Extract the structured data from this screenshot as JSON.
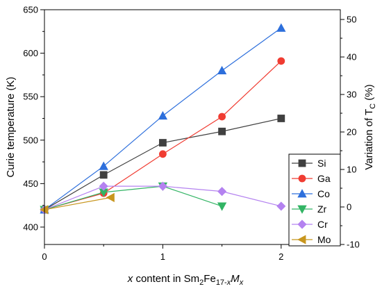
{
  "chart_data": {
    "type": "line",
    "xlabel": {
      "prefix_italic": "x",
      "middle": " content in Sm",
      "sub1": "2",
      "fe": "Fe",
      "sub2_pre": "17-",
      "sub2_italic": "x",
      "m_italic": "M",
      "sub3_italic": "x"
    },
    "ylabel_left": "Curie temperature (K)",
    "ylabel_right": {
      "main": "Variation of T",
      "sub": "C",
      "unit": " (%)"
    },
    "xlim": [
      0,
      2.5
    ],
    "ylim_left": [
      380,
      650
    ],
    "ylim_right": [
      -10,
      52.6
    ],
    "x_ticks": [
      0,
      1,
      2
    ],
    "x_tick_labels": [
      "0",
      "1",
      "2"
    ],
    "y_left_ticks": [
      400,
      450,
      500,
      550,
      600,
      650
    ],
    "y_left_tick_labels": [
      "400",
      "450",
      "500",
      "550",
      "600",
      "650"
    ],
    "y_right_ticks": [
      -10,
      0,
      10,
      20,
      30,
      40,
      50
    ],
    "y_right_tick_labels": [
      "-10",
      "0",
      "10",
      "20",
      "30",
      "40",
      "50"
    ],
    "legend_position": "lower-right",
    "series": [
      {
        "name": "Si",
        "color": "#404040",
        "marker": "square",
        "x": [
          0,
          0.5,
          1,
          1.5,
          2
        ],
        "y": [
          420,
          460,
          497,
          510,
          525
        ]
      },
      {
        "name": "Ga",
        "color": "#f03c32",
        "marker": "circle",
        "x": [
          0,
          0.5,
          1,
          1.5,
          2
        ],
        "y": [
          420,
          439,
          484,
          527,
          591
        ]
      },
      {
        "name": "Co",
        "color": "#2d6fdc",
        "marker": "triangle-up",
        "x": [
          0,
          0.5,
          1,
          1.5,
          2
        ],
        "y": [
          420,
          470,
          528,
          580,
          629
        ]
      },
      {
        "name": "Zr",
        "color": "#32b464",
        "marker": "triangle-down",
        "x": [
          0,
          0.5,
          1,
          1.5
        ],
        "y": [
          420,
          440,
          447,
          424
        ]
      },
      {
        "name": "Cr",
        "color": "#b482f0",
        "marker": "diamond",
        "x": [
          0,
          0.5,
          1,
          1.5,
          2
        ],
        "y": [
          420,
          447,
          447,
          441,
          424
        ]
      },
      {
        "name": "Mo",
        "color": "#c8961e",
        "marker": "triangle-left",
        "x": [
          0,
          0.56
        ],
        "y": [
          420,
          434
        ]
      }
    ]
  }
}
